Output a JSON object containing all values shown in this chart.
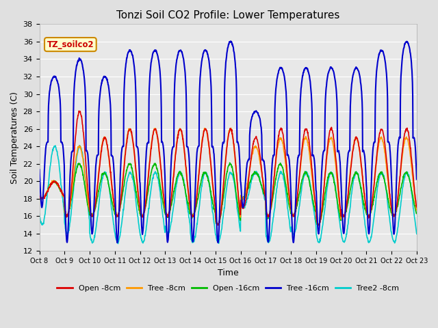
{
  "title": "Tonzi Soil CO2 Profile: Lower Temperatures",
  "ylabel": "Soil Temperatures (C)",
  "xlabel": "Time",
  "ylim": [
    12,
    38
  ],
  "background_color": "#e0e0e0",
  "plot_bg_color": "#e8e8e8",
  "series": {
    "Open -8cm": {
      "color": "#dd0000",
      "lw": 1.2
    },
    "Tree -8cm": {
      "color": "#ff9900",
      "lw": 1.2
    },
    "Open -16cm": {
      "color": "#00bb00",
      "lw": 1.2
    },
    "Tree -16cm": {
      "color": "#0000cc",
      "lw": 1.5
    },
    "Tree2 -8cm": {
      "color": "#00cccc",
      "lw": 1.2
    }
  },
  "watermark": "TZ_soilco2",
  "xtick_labels": [
    "Oct 8",
    "Oct 9",
    "Oct 10",
    "Oct 11",
    "Oct 12",
    "Oct 13",
    "Oct 14",
    "Oct 15",
    "Oct 16",
    "Oct 17",
    "Oct 18",
    "Oct 19",
    "Oct 20",
    "Oct 21",
    "Oct 22",
    "Oct 23"
  ],
  "ytick_values": [
    12,
    14,
    16,
    18,
    20,
    22,
    24,
    26,
    28,
    30,
    32,
    34,
    36,
    38
  ],
  "n_days": 15,
  "pts_per_day": 96,
  "blue_peaks": [
    32,
    34,
    32,
    35,
    35,
    35,
    35,
    36,
    28,
    33,
    33,
    33,
    33,
    35,
    36
  ],
  "blue_mins": [
    17,
    13,
    14,
    13,
    14,
    13,
    13,
    13,
    17,
    13,
    13,
    14,
    14,
    14,
    14
  ],
  "red_peaks": [
    20,
    28,
    25,
    26,
    26,
    26,
    26,
    26,
    25,
    26,
    26,
    26,
    25,
    26,
    26
  ],
  "red_mins": [
    18,
    16,
    16,
    16,
    16,
    16,
    16,
    15,
    17,
    16,
    16,
    15,
    16,
    16,
    16
  ],
  "orange_peaks": [
    20,
    24,
    25,
    26,
    26,
    26,
    26,
    26,
    24,
    25,
    25,
    25,
    25,
    25,
    25
  ],
  "orange_mins": [
    18,
    16,
    16,
    16,
    16,
    16,
    16,
    15,
    18,
    16,
    16,
    15,
    16,
    16,
    16
  ],
  "green_peaks": [
    20,
    22,
    21,
    22,
    22,
    21,
    21,
    22,
    21,
    22,
    21,
    21,
    21,
    21,
    21
  ],
  "green_mins": [
    18,
    16,
    16,
    16,
    16,
    16,
    16,
    15,
    18,
    16,
    16,
    15,
    16,
    16,
    16
  ],
  "cyan_peaks": [
    24,
    24,
    21,
    21,
    21,
    21,
    21,
    21,
    21,
    21,
    21,
    21,
    21,
    21,
    21
  ],
  "cyan_mins": [
    15,
    14,
    13,
    13,
    13,
    14,
    13,
    13,
    17,
    13,
    14,
    13,
    13,
    13,
    13
  ],
  "blue_sharpness": 4.0,
  "other_sharpness": 1.0
}
